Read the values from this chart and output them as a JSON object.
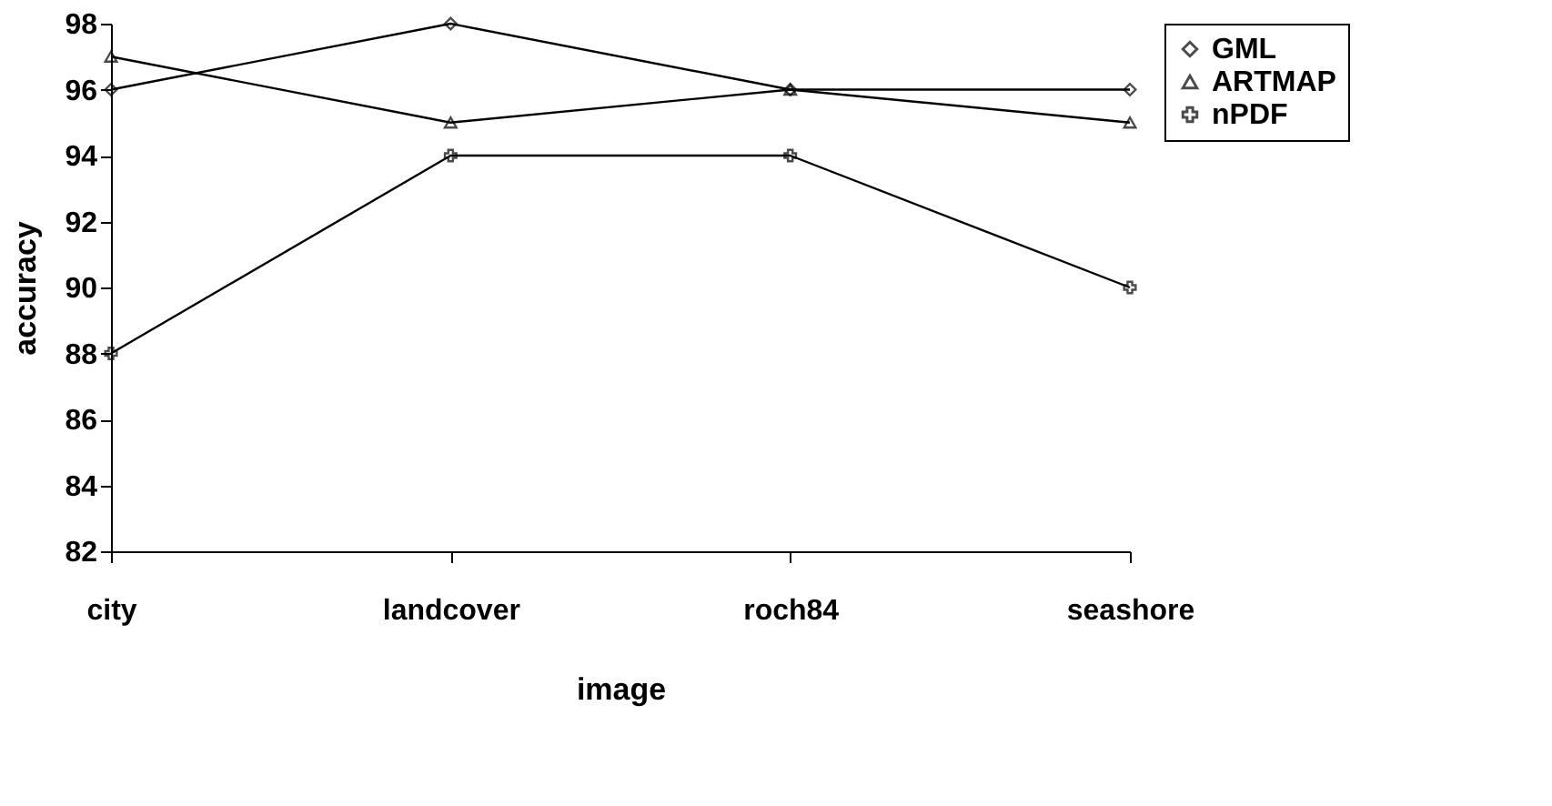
{
  "chart_data": {
    "type": "line",
    "xlabel": "image",
    "ylabel": "accuracy",
    "categories": [
      "city",
      "landcover",
      "roch84",
      "seashore"
    ],
    "series": [
      {
        "name": "GML",
        "color": "#000000",
        "marker": "diamond",
        "values": [
          96,
          98,
          96,
          96
        ]
      },
      {
        "name": "ARTMAP",
        "color": "#000000",
        "marker": "triangle",
        "values": [
          97,
          95,
          96,
          95
        ]
      },
      {
        "name": "nPDF",
        "color": "#000000",
        "marker": "cross",
        "values": [
          88,
          94,
          94,
          90
        ]
      }
    ],
    "ylim": [
      82,
      98
    ],
    "yticks": [
      82,
      84,
      86,
      88,
      90,
      92,
      94,
      96,
      98
    ],
    "grid": false,
    "legend": "right",
    "line_style": "solid"
  }
}
